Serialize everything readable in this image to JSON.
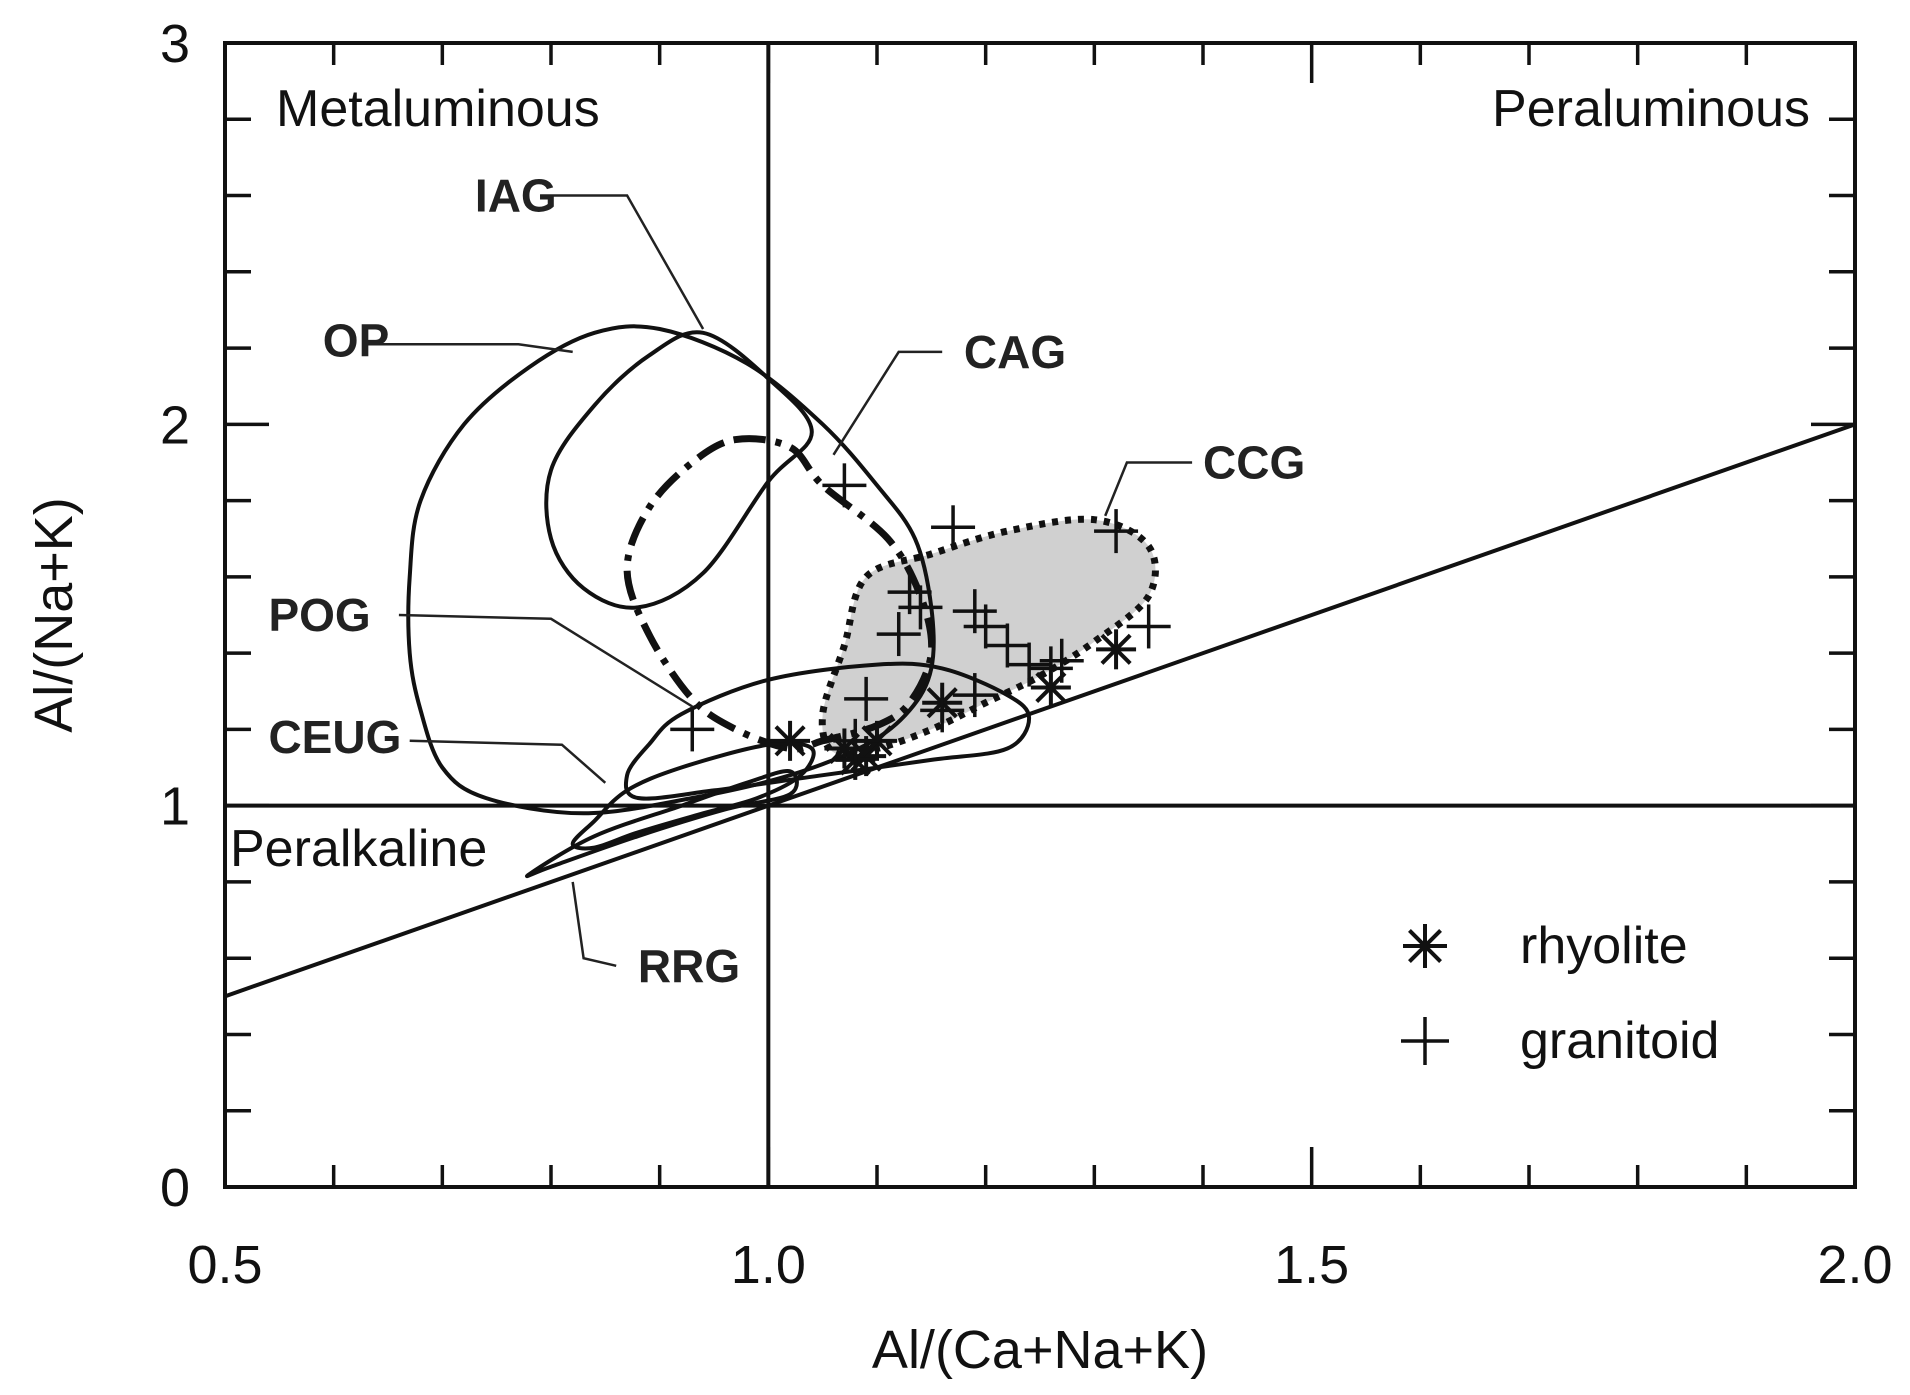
{
  "chart_data": {
    "type": "scatter",
    "title": "",
    "xlabel": "Al/(Ca+Na+K)",
    "ylabel": "Al/(Na+K)",
    "xlim": [
      0.5,
      2.0
    ],
    "ylim": [
      0,
      3
    ],
    "x_ticks": [
      "0.5",
      "1.0",
      "1.5",
      "2.0"
    ],
    "y_ticks": [
      "0",
      "1",
      "2",
      "3"
    ],
    "x_tick_values": [
      0.5,
      1.0,
      1.5,
      2.0
    ],
    "y_tick_values": [
      0,
      1,
      2,
      3
    ],
    "region_labels": {
      "metaluminous": "Metaluminous",
      "peraluminous": "Peraluminous",
      "peralkaline": "Peralkaline"
    },
    "reference_lines": [
      {
        "name": "ASI = 1",
        "from": [
          1.0,
          0
        ],
        "to": [
          1.0,
          3
        ]
      },
      {
        "name": "A/NK = 1",
        "from": [
          0.5,
          1.0
        ],
        "to": [
          2.0,
          1.0
        ]
      },
      {
        "name": "Ca = 0 limit",
        "from": [
          0.5,
          0.5
        ],
        "to": [
          2.0,
          2.0
        ]
      }
    ],
    "fields": [
      {
        "label": "OP",
        "style": "solid",
        "fill": "none",
        "points": [
          [
            0.9,
            2.25
          ],
          [
            0.98,
            2.16
          ],
          [
            1.05,
            2.0
          ],
          [
            1.1,
            1.84
          ],
          [
            1.135,
            1.7
          ],
          [
            1.15,
            1.52
          ],
          [
            1.15,
            1.36
          ],
          [
            1.13,
            1.25
          ],
          [
            1.09,
            1.16
          ],
          [
            1.02,
            1.08
          ],
          [
            0.93,
            1.02
          ],
          [
            0.83,
            0.98
          ],
          [
            0.74,
            1.02
          ],
          [
            0.7,
            1.1
          ],
          [
            0.68,
            1.25
          ],
          [
            0.67,
            1.4
          ],
          [
            0.67,
            1.6
          ],
          [
            0.68,
            1.8
          ],
          [
            0.72,
            2.0
          ],
          [
            0.78,
            2.15
          ],
          [
            0.84,
            2.24
          ]
        ],
        "label_at": [
          0.59,
          2.22
        ],
        "leader": [
          [
            0.63,
            2.21
          ],
          [
            0.77,
            2.21
          ],
          [
            0.82,
            2.19
          ]
        ]
      },
      {
        "label": "IAG",
        "style": "solid",
        "fill": "none",
        "points": [
          [
            0.94,
            2.24
          ],
          [
            1.0,
            2.12
          ],
          [
            1.04,
            1.98
          ],
          [
            1.0,
            1.85
          ],
          [
            0.94,
            1.61
          ],
          [
            0.88,
            1.52
          ],
          [
            0.83,
            1.57
          ],
          [
            0.8,
            1.7
          ],
          [
            0.8,
            1.88
          ],
          [
            0.84,
            2.05
          ],
          [
            0.89,
            2.18
          ]
        ],
        "label_at": [
          0.73,
          2.6
        ],
        "leader": [
          [
            0.79,
            2.6
          ],
          [
            0.87,
            2.6
          ],
          [
            0.94,
            2.25
          ]
        ]
      },
      {
        "label": "CAG",
        "style": "dashdot",
        "fill": "none",
        "points": [
          [
            0.97,
            1.96
          ],
          [
            1.02,
            1.94
          ],
          [
            1.05,
            1.84
          ],
          [
            1.11,
            1.7
          ],
          [
            1.14,
            1.55
          ],
          [
            1.15,
            1.4
          ],
          [
            1.13,
            1.27
          ],
          [
            1.1,
            1.21
          ],
          [
            1.05,
            1.17
          ],
          [
            1.02,
            1.15
          ],
          [
            0.97,
            1.2
          ],
          [
            0.93,
            1.28
          ],
          [
            0.89,
            1.45
          ],
          [
            0.87,
            1.62
          ],
          [
            0.89,
            1.78
          ],
          [
            0.93,
            1.9
          ]
        ],
        "label_at": [
          1.18,
          2.19
        ],
        "leader": [
          [
            1.16,
            2.19
          ],
          [
            1.12,
            2.19
          ],
          [
            1.06,
            1.92
          ]
        ]
      },
      {
        "label": "CCG",
        "style": "dotted",
        "fill": "#d0d0d0",
        "points": [
          [
            1.09,
            1.6
          ],
          [
            1.15,
            1.66
          ],
          [
            1.22,
            1.72
          ],
          [
            1.3,
            1.75
          ],
          [
            1.35,
            1.68
          ],
          [
            1.35,
            1.55
          ],
          [
            1.3,
            1.43
          ],
          [
            1.25,
            1.34
          ],
          [
            1.2,
            1.27
          ],
          [
            1.15,
            1.2
          ],
          [
            1.1,
            1.15
          ],
          [
            1.06,
            1.14
          ],
          [
            1.05,
            1.24
          ],
          [
            1.07,
            1.42
          ]
        ],
        "label_at": [
          1.4,
          1.9
        ],
        "leader": [
          [
            1.39,
            1.9
          ],
          [
            1.33,
            1.9
          ],
          [
            1.31,
            1.76
          ]
        ]
      },
      {
        "label": "POG",
        "style": "solid",
        "fill": "none",
        "points": [
          [
            1.0,
            1.33
          ],
          [
            1.1,
            1.37
          ],
          [
            1.16,
            1.36
          ],
          [
            1.22,
            1.29
          ],
          [
            1.24,
            1.23
          ],
          [
            1.22,
            1.15
          ],
          [
            1.15,
            1.12
          ],
          [
            1.05,
            1.08
          ],
          [
            0.95,
            1.04
          ],
          [
            0.88,
            1.02
          ],
          [
            0.87,
            1.08
          ],
          [
            0.89,
            1.16
          ],
          [
            0.92,
            1.24
          ]
        ],
        "label_at": [
          0.54,
          1.5
        ],
        "leader": [
          [
            0.66,
            1.5
          ],
          [
            0.8,
            1.49
          ],
          [
            0.93,
            1.26
          ]
        ]
      },
      {
        "label": "CEUG",
        "style": "solid",
        "fill": "none",
        "points": [
          [
            0.92,
            1.1
          ],
          [
            1.0,
            1.16
          ],
          [
            1.04,
            1.15
          ],
          [
            1.03,
            1.08
          ],
          [
            0.99,
            1.02
          ],
          [
            0.94,
            0.98
          ],
          [
            0.88,
            0.93
          ],
          [
            0.84,
            0.89
          ],
          [
            0.82,
            0.9
          ],
          [
            0.84,
            0.96
          ],
          [
            0.87,
            1.04
          ]
        ],
        "label_at": [
          0.54,
          1.18
        ],
        "leader": [
          [
            0.67,
            1.17
          ],
          [
            0.81,
            1.16
          ],
          [
            0.85,
            1.06
          ]
        ]
      },
      {
        "label": "RRG",
        "style": "solid",
        "fill": "none",
        "points": [
          [
            0.78,
            0.82
          ],
          [
            0.84,
            0.92
          ],
          [
            0.92,
            1.0
          ],
          [
            0.98,
            1.06
          ],
          [
            1.02,
            1.09
          ],
          [
            1.02,
            1.03
          ],
          [
            0.96,
            0.99
          ],
          [
            0.88,
            0.92
          ],
          [
            0.8,
            0.84
          ]
        ],
        "label_at": [
          0.88,
          0.58
        ],
        "leader": [
          [
            0.86,
            0.58
          ],
          [
            0.83,
            0.6
          ],
          [
            0.82,
            0.8
          ]
        ]
      }
    ],
    "series": [
      {
        "name": "rhyolite",
        "marker": "asterisk",
        "points": [
          [
            1.02,
            1.17
          ],
          [
            1.07,
            1.15
          ],
          [
            1.09,
            1.13
          ],
          [
            1.1,
            1.17
          ],
          [
            1.08,
            1.12
          ],
          [
            1.16,
            1.27
          ],
          [
            1.26,
            1.31
          ],
          [
            1.32,
            1.41
          ]
        ]
      },
      {
        "name": "granitoid",
        "marker": "plus",
        "points": [
          [
            1.07,
            1.84
          ],
          [
            1.17,
            1.73
          ],
          [
            1.13,
            1.56
          ],
          [
            1.14,
            1.52
          ],
          [
            1.12,
            1.45
          ],
          [
            1.19,
            1.51
          ],
          [
            1.2,
            1.47
          ],
          [
            1.22,
            1.42
          ],
          [
            1.24,
            1.37
          ],
          [
            1.26,
            1.36
          ],
          [
            1.27,
            1.38
          ],
          [
            1.32,
            1.72
          ],
          [
            1.35,
            1.47
          ],
          [
            1.09,
            1.28
          ],
          [
            0.93,
            1.2
          ],
          [
            1.08,
            1.17
          ],
          [
            1.19,
            1.29
          ],
          [
            1.16,
            1.25
          ]
        ]
      }
    ],
    "legend": {
      "position": "bottom-right",
      "entries": [
        "rhyolite",
        "granitoid"
      ]
    }
  }
}
